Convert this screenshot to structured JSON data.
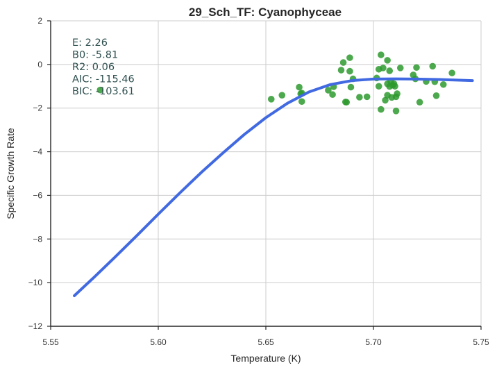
{
  "chart_data": {
    "type": "scatter",
    "title": "29_Sch_TF: Cyanophyceae",
    "xlabel": "Temperature (K)",
    "ylabel": "Specific Growth Rate",
    "xlim": [
      5.55,
      5.75
    ],
    "ylim": [
      -12,
      2
    ],
    "xticks": [
      "5.55",
      "5.60",
      "5.65",
      "5.70",
      "5.75"
    ],
    "yticks": [
      "−12",
      "−10",
      "−8",
      "−6",
      "−4",
      "−2",
      "0",
      "2"
    ],
    "grid": true,
    "stats": [
      "E:  2.26",
      "B0:  -5.81",
      "R2:  0.06",
      "AIC: -115.46",
      "BIC: -103.61"
    ],
    "colors": {
      "points": "#2e9a2e",
      "fit": "#4169e1",
      "stats_text": "#2f4f4f"
    },
    "series": [
      {
        "type": "scatter",
        "points": [
          [
            5.573,
            -1.17
          ],
          [
            5.6525,
            -1.59
          ],
          [
            5.6575,
            -1.41
          ],
          [
            5.6655,
            -1.04
          ],
          [
            5.6662,
            -1.34
          ],
          [
            5.6667,
            -1.7
          ],
          [
            5.6667,
            -1.31
          ],
          [
            5.679,
            -1.18
          ],
          [
            5.681,
            -1.38
          ],
          [
            5.6815,
            -1.02
          ],
          [
            5.685,
            -0.26
          ],
          [
            5.686,
            0.09
          ],
          [
            5.687,
            -1.72
          ],
          [
            5.6875,
            -1.73
          ],
          [
            5.689,
            0.31
          ],
          [
            5.689,
            -0.31
          ],
          [
            5.6895,
            -1.04
          ],
          [
            5.6905,
            -0.66
          ],
          [
            5.6935,
            -1.5
          ],
          [
            5.697,
            -1.48
          ],
          [
            5.7015,
            -0.62
          ],
          [
            5.7025,
            -0.22
          ],
          [
            5.7025,
            -1.0
          ],
          [
            5.7035,
            0.44
          ],
          [
            5.7035,
            -2.06
          ],
          [
            5.7045,
            -0.16
          ],
          [
            5.7055,
            -1.64
          ],
          [
            5.7065,
            -0.89
          ],
          [
            5.7065,
            -1.41
          ],
          [
            5.7065,
            0.19
          ],
          [
            5.7075,
            -0.29
          ],
          [
            5.7075,
            -1.01
          ],
          [
            5.708,
            -0.77
          ],
          [
            5.7085,
            -1.51
          ],
          [
            5.709,
            -0.95
          ],
          [
            5.7095,
            -0.88
          ],
          [
            5.71,
            -1.0
          ],
          [
            5.7105,
            -1.48
          ],
          [
            5.7105,
            -2.13
          ],
          [
            5.711,
            -1.34
          ],
          [
            5.7125,
            -0.16
          ],
          [
            5.7185,
            -0.48
          ],
          [
            5.7195,
            -0.66
          ],
          [
            5.72,
            -0.14
          ],
          [
            5.7215,
            -1.73
          ],
          [
            5.7245,
            -0.78
          ],
          [
            5.7275,
            -0.08
          ],
          [
            5.7285,
            -0.79
          ],
          [
            5.7292,
            -1.43
          ],
          [
            5.7325,
            -0.92
          ],
          [
            5.7365,
            -0.39
          ]
        ]
      },
      {
        "type": "line",
        "points": [
          [
            5.561,
            -10.6
          ],
          [
            5.57,
            -9.77
          ],
          [
            5.58,
            -8.82
          ],
          [
            5.59,
            -7.85
          ],
          [
            5.6,
            -6.86
          ],
          [
            5.61,
            -5.89
          ],
          [
            5.62,
            -4.95
          ],
          [
            5.63,
            -4.06
          ],
          [
            5.64,
            -3.21
          ],
          [
            5.65,
            -2.44
          ],
          [
            5.66,
            -1.78
          ],
          [
            5.67,
            -1.26
          ],
          [
            5.68,
            -0.92
          ],
          [
            5.69,
            -0.74
          ],
          [
            5.7,
            -0.67
          ],
          [
            5.71,
            -0.66
          ],
          [
            5.72,
            -0.67
          ],
          [
            5.73,
            -0.69
          ],
          [
            5.74,
            -0.72
          ],
          [
            5.746,
            -0.74
          ]
        ]
      }
    ]
  }
}
